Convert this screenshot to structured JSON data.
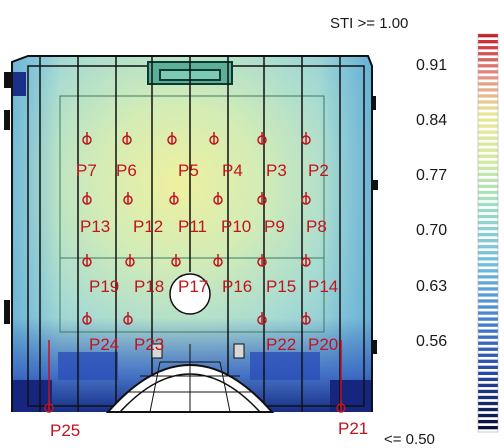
{
  "scale": {
    "top_label": "STI >= 1.00",
    "bottom_label": "<= 0.50",
    "ticks": [
      "0.91",
      "0.84",
      "0.77",
      "0.70",
      "0.63",
      "0.56"
    ]
  },
  "receivers": [
    {
      "id": "P7"
    },
    {
      "id": "P6"
    },
    {
      "id": "P5"
    },
    {
      "id": "P4"
    },
    {
      "id": "P3"
    },
    {
      "id": "P2"
    },
    {
      "id": "P13"
    },
    {
      "id": "P12"
    },
    {
      "id": "P11"
    },
    {
      "id": "P10"
    },
    {
      "id": "P9"
    },
    {
      "id": "P8"
    },
    {
      "id": "P19"
    },
    {
      "id": "P18"
    },
    {
      "id": "P17"
    },
    {
      "id": "P16"
    },
    {
      "id": "P15"
    },
    {
      "id": "P14"
    },
    {
      "id": "P24"
    },
    {
      "id": "P23"
    },
    {
      "id": "P22"
    },
    {
      "id": "P20"
    },
    {
      "id": "P25"
    },
    {
      "id": "P21"
    }
  ],
  "colors": {
    "point_label": "#c0141e",
    "outline": "#111111",
    "map_high": "#e8e890",
    "map_mid": "#a8dccf",
    "map_low": "#1a2f8a"
  }
}
